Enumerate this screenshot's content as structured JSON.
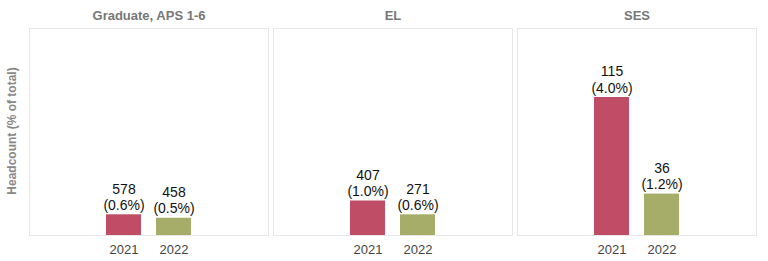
{
  "chart_data": {
    "type": "bar",
    "ylabel": "Headcount (% of total)",
    "categories": [
      "Graduate, APS 1-6",
      "EL",
      "SES"
    ],
    "series": [
      {
        "name": "2021",
        "color": "#c04d66",
        "values": [
          0.6,
          1.0,
          4.0
        ],
        "value_labels": [
          "578\n(0.6%)",
          "407\n(1.0%)",
          "115\n(4.0%)"
        ]
      },
      {
        "name": "2022",
        "color": "#a6ad68",
        "values": [
          0.5,
          0.6,
          1.2
        ],
        "value_labels": [
          "458\n(0.5%)",
          "271\n(0.6%)",
          "36\n(1.2%)"
        ]
      }
    ],
    "ylim": [
      0,
      6
    ],
    "yticks": [],
    "grid": false,
    "data_labels": true,
    "tick_labels": "x"
  }
}
